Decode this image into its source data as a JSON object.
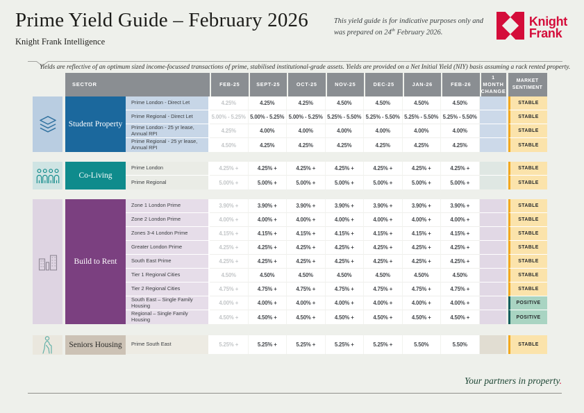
{
  "header": {
    "title": "Prime Yield Guide – February 2026",
    "subtitle": "Knight Frank Intelligence",
    "disclaimer": {
      "pre": "This yield guide is for indicative purposes only and was prepared on 24",
      "sup": "th",
      "post": " February 2026."
    },
    "logo": {
      "line1": "Knight",
      "line2": "Frank",
      "brand_red": "#d40d3a"
    }
  },
  "note": "Yields are reflective of an optimum sized income-focussed transactions of prime, stabilised institutional-grade assets. Yields are provided on a Net Initial Yield (NIY) basis assuming a rack rented property.",
  "table": {
    "sector_header": "SECTOR",
    "columns": [
      "FEB-25",
      "SEPT-25",
      "OCT-25",
      "NOV-25",
      "DEC-25",
      "JAN-26",
      "FEB-26"
    ],
    "change_header": "1 MONTH CHANGE",
    "sentiment_header": "MARKET SENTIMENT",
    "sentiments": {
      "STABLE": {
        "bg": "#fbe3ab",
        "stripe": "#f2a81f"
      },
      "POSITIVE": {
        "bg": "#a9d4c2",
        "stripe": "#145f5c"
      }
    },
    "sections": [
      {
        "id": "student-property",
        "label": "Student Property",
        "icon": "layers-icon",
        "colors": {
          "sector_bg": "#1b689d",
          "sector_text": "#ffffff",
          "icon_bg": "#b9cde1",
          "icon_color": "#30719f",
          "label_bg": "#c7d6e7",
          "change_bg": "#ccd9e9"
        },
        "rows": [
          {
            "label": "Prime London - Direct Let",
            "values": [
              "4.25%",
              "4.25%",
              "4.25%",
              "4.50%",
              "4.50%",
              "4.50%",
              "4.50%"
            ],
            "sentiment": "STABLE"
          },
          {
            "label": "Prime Regional - Direct Let",
            "values": [
              "5.00% - 5.25%",
              "5.00% - 5.25%",
              "5.00% - 5.25%",
              "5.25% - 5.50%",
              "5.25% - 5.50%",
              "5.25% - 5.50%",
              "5.25% - 5.50%"
            ],
            "sentiment": "STABLE"
          },
          {
            "label": "Prime London - 25 yr lease, Annual RPI",
            "values": [
              "4.25%",
              "4.00%",
              "4.00%",
              "4.00%",
              "4.00%",
              "4.00%",
              "4.00%"
            ],
            "sentiment": "STABLE"
          },
          {
            "label": "Prime Regional - 25 yr lease, Annual RPI",
            "values": [
              "4.50%",
              "4.25%",
              "4.25%",
              "4.25%",
              "4.25%",
              "4.25%",
              "4.25%"
            ],
            "sentiment": "STABLE"
          }
        ]
      },
      {
        "id": "co-living",
        "label": "Co-Living",
        "icon": "people-icon",
        "colors": {
          "sector_bg": "#0f8b8c",
          "sector_text": "#ffffff",
          "icon_bg": "#cfe4e3",
          "icon_color": "#118a8a",
          "label_bg": "#eaece6",
          "change_bg": "#dfe7e3"
        },
        "rows": [
          {
            "label": "Prime London",
            "values": [
              "4.25% +",
              "4.25% +",
              "4.25% +",
              "4.25% +",
              "4.25% +",
              "4.25% +",
              "4.25% +"
            ],
            "sentiment": "STABLE"
          },
          {
            "label": "Prime Regional",
            "values": [
              "5.00% +",
              "5.00% +",
              "5.00% +",
              "5.00% +",
              "5.00% +",
              "5.00% +",
              "5.00% +"
            ],
            "sentiment": "STABLE"
          }
        ]
      },
      {
        "id": "build-to-rent",
        "label": "Build to Rent",
        "icon": "buildings-icon",
        "colors": {
          "sector_bg": "#7b4080",
          "sector_text": "#ffffff",
          "icon_bg": "#ded4e2",
          "icon_color": "#8e8794",
          "label_bg": "#e6dde9",
          "change_bg": "#e1d8e5"
        },
        "rows": [
          {
            "label": "Zone 1 London Prime",
            "values": [
              "3.90% +",
              "3.90% +",
              "3.90% +",
              "3.90% +",
              "3.90% +",
              "3.90% +",
              "3.90% +"
            ],
            "sentiment": "STABLE"
          },
          {
            "label": "Zone 2 London Prime",
            "values": [
              "4.00% +",
              "4.00% +",
              "4.00% +",
              "4.00% +",
              "4.00% +",
              "4.00% +",
              "4.00% +"
            ],
            "sentiment": "STABLE"
          },
          {
            "label": "Zones 3-4 London Prime",
            "values": [
              "4.15% +",
              "4.15% +",
              "4.15% +",
              "4.15% +",
              "4.15% +",
              "4.15% +",
              "4.15% +"
            ],
            "sentiment": "STABLE"
          },
          {
            "label": "Greater London Prime",
            "values": [
              "4.25% +",
              "4.25% +",
              "4.25% +",
              "4.25% +",
              "4.25% +",
              "4.25% +",
              "4.25% +"
            ],
            "sentiment": "STABLE"
          },
          {
            "label": "South East Prime",
            "values": [
              "4.25% +",
              "4.25% +",
              "4.25% +",
              "4.25% +",
              "4.25% +",
              "4.25% +",
              "4.25% +"
            ],
            "sentiment": "STABLE"
          },
          {
            "label": "Tier 1 Regional Cities",
            "values": [
              "4.50%",
              "4.50%",
              "4.50%",
              "4.50%",
              "4.50%",
              "4.50%",
              "4.50%"
            ],
            "sentiment": "STABLE"
          },
          {
            "label": "Tier 2 Regional Cities",
            "values": [
              "4.75% +",
              "4.75% +",
              "4.75% +",
              "4.75% +",
              "4.75% +",
              "4.75% +",
              "4.75% +"
            ],
            "sentiment": "STABLE"
          },
          {
            "label": "South East – Single Family Housing",
            "values": [
              "4.00% +",
              "4.00% +",
              "4.00% +",
              "4.00% +",
              "4.00% +",
              "4.00% +",
              "4.00% +"
            ],
            "sentiment": "POSITIVE"
          },
          {
            "label": "Regional – Single Family Housing",
            "values": [
              "4.50% +",
              "4.50% +",
              "4.50% +",
              "4.50% +",
              "4.50% +",
              "4.50% +",
              "4.50% +"
            ],
            "sentiment": "POSITIVE"
          }
        ]
      },
      {
        "id": "seniors-housing",
        "label": "Seniors Housing",
        "icon": "senior-icon",
        "colors": {
          "sector_bg": "#ccc2b5",
          "sector_text": "#2a2a28",
          "icon_bg": "#eae7de",
          "icon_color": "#63b1a9",
          "label_bg": "#edebe3",
          "change_bg": "#e1ddd2"
        },
        "rows": [
          {
            "label": "Prime South East",
            "values": [
              "5.25% +",
              "5.25% +",
              "5.25% +",
              "5.25% +",
              "5.25% +",
              "5.50%",
              "5.50%"
            ],
            "sentiment": "STABLE"
          }
        ]
      }
    ]
  },
  "footer": {
    "text": "Your partners in property",
    "period": "."
  }
}
